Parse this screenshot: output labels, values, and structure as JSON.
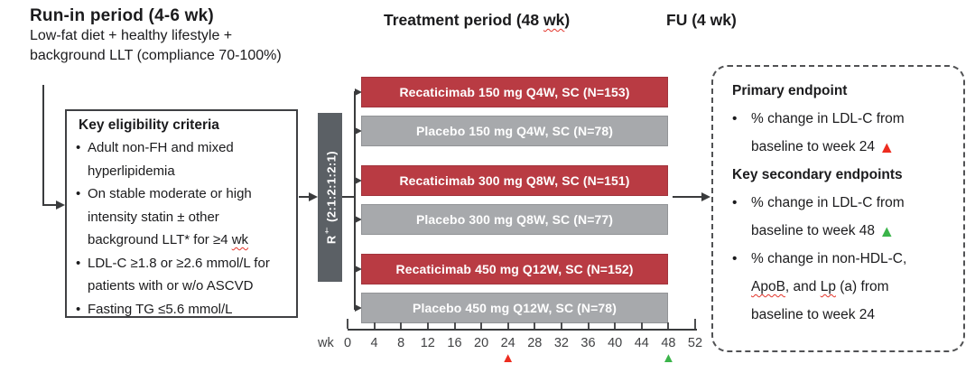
{
  "colors": {
    "active_arm": "#b93b43",
    "active_arm_border": "#a1343c",
    "placebo_arm": "#a7a9ac",
    "placebo_arm_border": "#929497",
    "randomization_bar": "#5b6065",
    "flow_line": "#3a3b3d",
    "marker_red": "#ed2c1f",
    "marker_green": "#3bb44a"
  },
  "runin": {
    "title": "Run-in period (4-6 wk)",
    "sub1": "Low-fat diet + healthy lifestyle +",
    "sub2": "background LLT (compliance 70-100%)"
  },
  "treatment_header": {
    "segments": [
      {
        "t": "Treatment period (48 "
      },
      {
        "t": "wk",
        "sq": true
      },
      {
        "t": ")"
      }
    ]
  },
  "fu_header": "FU (4 wk)",
  "eligibility": {
    "title": "Key eligibility criteria",
    "bullets": [
      {
        "lines": [
          [
            {
              "t": "Adult non-FH and mixed"
            }
          ],
          [
            {
              "t": "hyperlipidemia"
            }
          ]
        ]
      },
      {
        "lines": [
          [
            {
              "t": "On stable moderate or high"
            }
          ],
          [
            {
              "t": "intensity statin ± other"
            }
          ],
          [
            {
              "t": "background LLT* for ≥4 "
            },
            {
              "t": "wk",
              "sq": true
            }
          ]
        ]
      },
      {
        "lines": [
          [
            {
              "t": "LDL-C ≥1.8 or ≥2.6 mmol/L for"
            }
          ],
          [
            {
              "t": "patients with or w/o ASCVD"
            }
          ]
        ]
      },
      {
        "lines": [
          [
            {
              "t": "Fasting TG ≤5.6 mmol/L"
            }
          ]
        ]
      }
    ]
  },
  "randomization": {
    "segments": [
      {
        "t": "R"
      },
      {
        "t": "†",
        "sup": true
      },
      {
        "t": " (2:1:2:1:2:1)"
      }
    ]
  },
  "arms": [
    {
      "label": "Recaticimab 150 mg Q4W, SC (N=153)",
      "type": "active"
    },
    {
      "label": "Placebo 150 mg Q4W, SC (N=78)",
      "type": "placebo"
    },
    {
      "label": "Recaticimab 300 mg Q8W, SC (N=151)",
      "type": "active"
    },
    {
      "label": "Placebo 300 mg Q8W, SC (N=77)",
      "type": "placebo"
    },
    {
      "label": "Recaticimab 450 mg Q12W, SC (N=152)",
      "type": "active"
    },
    {
      "label": "Placebo 450 mg Q12W, SC (N=78)",
      "type": "placebo"
    }
  ],
  "axis": {
    "unit_label": "wk",
    "ticks": [
      0,
      4,
      8,
      12,
      16,
      20,
      24,
      28,
      32,
      36,
      40,
      44,
      48,
      52
    ],
    "markers": [
      {
        "week": 24,
        "glyph": "▲",
        "color": "#ed2c1f"
      },
      {
        "week": 48,
        "glyph": "▲",
        "color": "#3bb44a"
      }
    ]
  },
  "endpoints": {
    "sections": [
      {
        "type": "heading",
        "text": "Primary endpoint"
      },
      {
        "type": "bullet",
        "lines": [
          [
            {
              "t": "% change in LDL-C from"
            }
          ],
          [
            {
              "t": "baseline to week 24 "
            },
            {
              "t": "▲",
              "tri": true,
              "color": "#ed2c1f"
            }
          ]
        ]
      },
      {
        "type": "heading",
        "text": "Key secondary endpoints"
      },
      {
        "type": "bullet",
        "lines": [
          [
            {
              "t": "% change in LDL-C from"
            }
          ],
          [
            {
              "t": "baseline to week 48 "
            },
            {
              "t": "▲",
              "tri": true,
              "color": "#3bb44a"
            }
          ]
        ]
      },
      {
        "type": "bullet",
        "lines": [
          [
            {
              "t": "% change in non-HDL-C,"
            }
          ],
          [
            {
              "t": "ApoB",
              "sq": true
            },
            {
              "t": ", and "
            },
            {
              "t": "Lp",
              "sq": true
            },
            {
              "t": " (a) from"
            }
          ],
          [
            {
              "t": "baseline to week 24"
            }
          ]
        ]
      }
    ]
  }
}
